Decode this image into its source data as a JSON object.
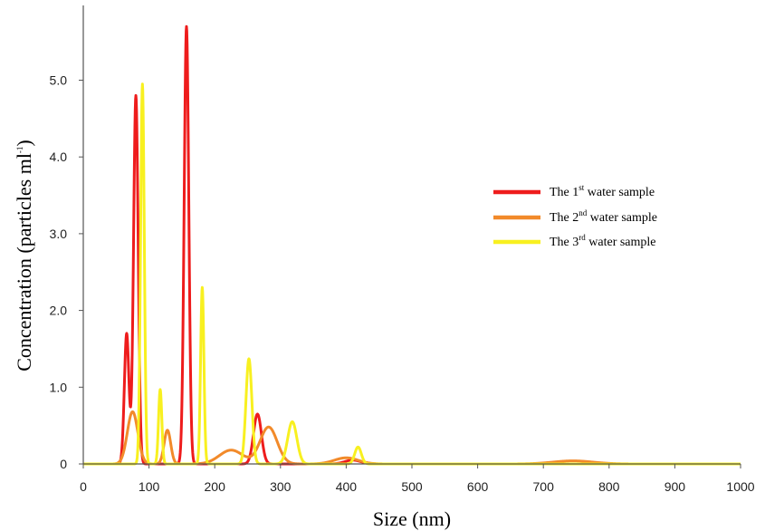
{
  "chart_data": {
    "type": "line",
    "xlabel": "Size (nm)",
    "ylabel": {
      "main": "Concentration (particles ml",
      "sup": "-1",
      "end": ")"
    },
    "xlim": [
      0,
      1000
    ],
    "ylim": [
      0,
      6.0
    ],
    "x_ticks": [
      "0",
      "100",
      "200",
      "300",
      "400",
      "500",
      "600",
      "700",
      "800",
      "900",
      "1000"
    ],
    "y_ticks": [
      {
        "value": 0,
        "label": "0"
      },
      {
        "value": 1,
        "label": "1.0"
      },
      {
        "value": 2,
        "label": "2.0"
      },
      {
        "value": 3,
        "label": "3.0"
      },
      {
        "value": 4,
        "label": "4.0"
      },
      {
        "value": 5,
        "label": "5.0"
      }
    ],
    "grid": false,
    "legend_position": "right",
    "series": [
      {
        "name": {
          "pre": "The 1",
          "sup": "st",
          "post": " water sample"
        },
        "color": "#ee1c1c",
        "peaks": [
          [
            66,
            1.7,
            3.5
          ],
          [
            80,
            4.8,
            3.5
          ],
          [
            157,
            5.7,
            3.5
          ],
          [
            265,
            0.65,
            6
          ],
          [
            410,
            0.05,
            12
          ]
        ]
      },
      {
        "name": {
          "pre": "The 2",
          "sup": "nd",
          "post": " water sample"
        },
        "color": "#f28a2a",
        "peaks": [
          [
            75,
            0.68,
            8
          ],
          [
            128,
            0.44,
            5
          ],
          [
            225,
            0.18,
            18
          ],
          [
            282,
            0.48,
            13
          ],
          [
            400,
            0.08,
            18
          ],
          [
            745,
            0.04,
            30
          ]
        ]
      },
      {
        "name": {
          "pre": "The 3",
          "sup": "rd",
          "post": " water sample"
        },
        "color": "#f8f020",
        "peaks": [
          [
            90,
            4.95,
            2.8
          ],
          [
            117,
            0.97,
            2.5
          ],
          [
            181,
            2.3,
            2.5
          ],
          [
            252,
            1.37,
            4.5
          ],
          [
            318,
            0.55,
            7
          ],
          [
            418,
            0.22,
            5
          ]
        ]
      }
    ]
  }
}
